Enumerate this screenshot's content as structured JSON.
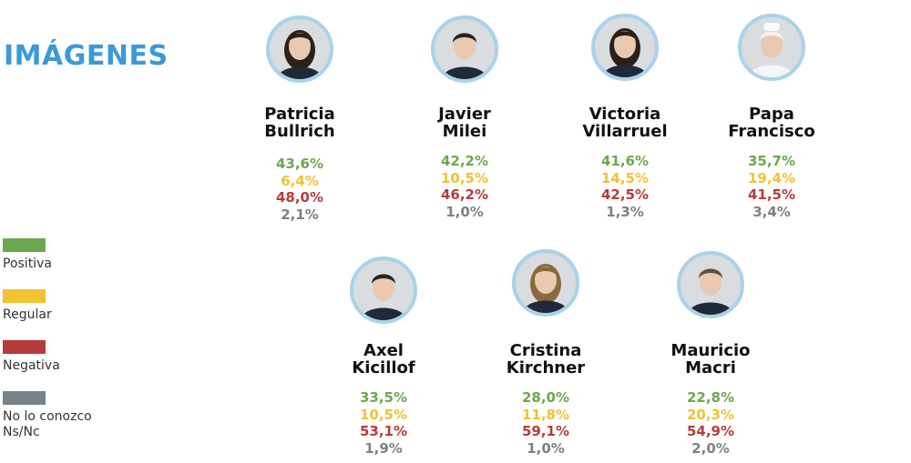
{
  "title": "IMÁGENES",
  "legend": [
    {
      "key": "positiva",
      "label": "Positiva",
      "color": "#6aa84f"
    },
    {
      "key": "regular",
      "label": "Regular",
      "color": "#f1c232"
    },
    {
      "key": "negativa",
      "label": "Negativa",
      "color": "#b83b3b"
    },
    {
      "key": "nsnc",
      "label": "No lo conozco\nNs/Nc",
      "color": "#7a8288"
    }
  ],
  "chart_data": {
    "type": "table",
    "title": "IMÁGENES",
    "series": [
      {
        "name": "Positiva",
        "color": "#6aa84f"
      },
      {
        "name": "Regular",
        "color": "#f1c232"
      },
      {
        "name": "Negativa",
        "color": "#b83b3b"
      },
      {
        "name": "No lo conozco Ns/Nc",
        "color": "#7a8288"
      }
    ],
    "people": [
      {
        "first": "Patricia",
        "last": "Bullrich",
        "icon": "portrait-woman-dark-hair-icon",
        "values": [
          "43,6%",
          "6,4%",
          "48,0%",
          "2,1%"
        ]
      },
      {
        "first": "Javier",
        "last": "Milei",
        "icon": "portrait-man-suit-icon",
        "values": [
          "42,2%",
          "10,5%",
          "46,2%",
          "1,0%"
        ]
      },
      {
        "first": "Victoria",
        "last": "Villarruel",
        "icon": "portrait-woman-long-hair-icon",
        "values": [
          "41,6%",
          "14,5%",
          "42,5%",
          "1,3%"
        ]
      },
      {
        "first": "Papa",
        "last": "Francisco",
        "icon": "portrait-pope-icon",
        "values": [
          "35,7%",
          "19,4%",
          "41,5%",
          "3,4%"
        ]
      },
      {
        "first": "Axel",
        "last": "Kicillof",
        "icon": "portrait-man-dark-hair-icon",
        "values": [
          "33,5%",
          "10,5%",
          "53,1%",
          "1,9%"
        ]
      },
      {
        "first": "Cristina",
        "last": "Kirchner",
        "icon": "portrait-woman-blonde-icon",
        "values": [
          "28,0%",
          "11,8%",
          "59,1%",
          "1,0%"
        ]
      },
      {
        "first": "Mauricio",
        "last": "Macri",
        "icon": "portrait-man-smiling-icon",
        "values": [
          "22,8%",
          "20,3%",
          "54,9%",
          "2,0%"
        ]
      }
    ]
  }
}
